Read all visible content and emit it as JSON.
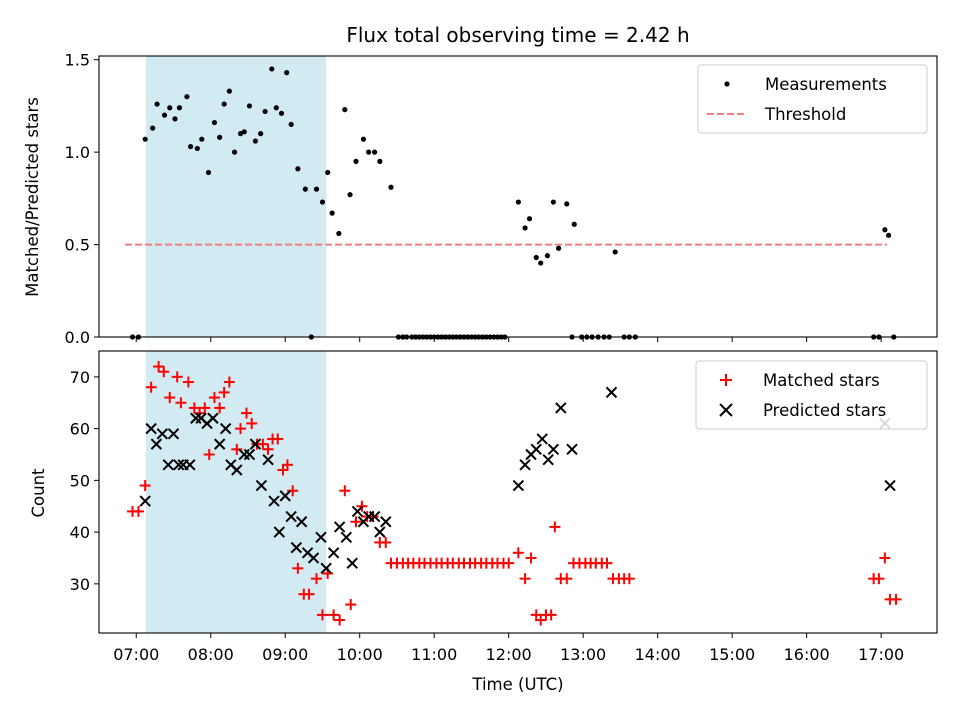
{
  "chart_data": [
    {
      "type": "scatter",
      "title": "Flux total observing time = 2.42 h",
      "ylabel": "Matched/Predicted stars",
      "xlim": [
        6.5,
        17.75
      ],
      "ylim": [
        0,
        1.52
      ],
      "yticks": [
        0.0,
        0.5,
        1.0,
        1.5
      ],
      "yticklabels": [
        "0.0",
        "0.5",
        "1.0",
        "1.5"
      ],
      "shaded_interval": {
        "x": [
          7.13,
          9.55
        ],
        "color": "#add8e6"
      },
      "legend": "top-right",
      "threshold": {
        "name": "Threshold",
        "y": 0.5,
        "x": [
          6.85,
          17.08
        ],
        "color": "#f08080",
        "style": "dashed"
      },
      "series": [
        {
          "name": "Measurements",
          "color": "#000000",
          "marker": "dot",
          "points": [
            [
              6.95,
              0
            ],
            [
              7.03,
              0
            ],
            [
              7.12,
              1.07
            ],
            [
              7.22,
              1.13
            ],
            [
              7.28,
              1.26
            ],
            [
              7.38,
              1.2
            ],
            [
              7.45,
              1.24
            ],
            [
              7.52,
              1.18
            ],
            [
              7.58,
              1.24
            ],
            [
              7.68,
              1.3
            ],
            [
              7.73,
              1.03
            ],
            [
              7.82,
              1.02
            ],
            [
              7.88,
              1.07
            ],
            [
              7.97,
              0.89
            ],
            [
              8.05,
              1.16
            ],
            [
              8.12,
              1.08
            ],
            [
              8.18,
              1.26
            ],
            [
              8.25,
              1.33
            ],
            [
              8.32,
              1.0
            ],
            [
              8.4,
              1.1
            ],
            [
              8.45,
              1.11
            ],
            [
              8.52,
              1.25
            ],
            [
              8.6,
              1.06
            ],
            [
              8.67,
              1.1
            ],
            [
              8.73,
              1.22
            ],
            [
              8.82,
              1.45
            ],
            [
              8.88,
              1.24
            ],
            [
              8.95,
              1.21
            ],
            [
              9.02,
              1.43
            ],
            [
              9.08,
              1.15
            ],
            [
              9.17,
              0.91
            ],
            [
              9.27,
              0.8
            ],
            [
              9.35,
              0
            ],
            [
              9.42,
              0.8
            ],
            [
              9.5,
              0.73
            ],
            [
              9.57,
              0.89
            ],
            [
              9.63,
              0.67
            ],
            [
              9.72,
              0.56
            ],
            [
              9.8,
              1.23
            ],
            [
              9.87,
              0.77
            ],
            [
              9.95,
              0.95
            ],
            [
              10.05,
              1.07
            ],
            [
              10.12,
              1.0
            ],
            [
              10.2,
              1.0
            ],
            [
              10.27,
              0.95
            ],
            [
              10.42,
              0.81
            ],
            [
              10.52,
              0
            ],
            [
              10.58,
              0
            ],
            [
              10.63,
              0
            ],
            [
              10.7,
              0
            ],
            [
              10.75,
              0
            ],
            [
              10.8,
              0
            ],
            [
              10.85,
              0
            ],
            [
              10.9,
              0
            ],
            [
              10.95,
              0
            ],
            [
              11.0,
              0
            ],
            [
              11.05,
              0
            ],
            [
              11.1,
              0
            ],
            [
              11.15,
              0
            ],
            [
              11.2,
              0
            ],
            [
              11.25,
              0
            ],
            [
              11.3,
              0
            ],
            [
              11.35,
              0
            ],
            [
              11.4,
              0
            ],
            [
              11.45,
              0
            ],
            [
              11.5,
              0
            ],
            [
              11.55,
              0
            ],
            [
              11.6,
              0
            ],
            [
              11.65,
              0
            ],
            [
              11.7,
              0
            ],
            [
              11.75,
              0
            ],
            [
              11.8,
              0
            ],
            [
              11.85,
              0
            ],
            [
              11.9,
              0
            ],
            [
              11.95,
              0
            ],
            [
              12.13,
              0.73
            ],
            [
              12.22,
              0.59
            ],
            [
              12.28,
              0.64
            ],
            [
              12.37,
              0.43
            ],
            [
              12.43,
              0.4
            ],
            [
              12.52,
              0.44
            ],
            [
              12.6,
              0.73
            ],
            [
              12.67,
              0.48
            ],
            [
              12.78,
              0.72
            ],
            [
              12.88,
              0.61
            ],
            [
              12.85,
              0
            ],
            [
              12.98,
              0
            ],
            [
              13.05,
              0
            ],
            [
              13.12,
              0
            ],
            [
              13.2,
              0
            ],
            [
              13.28,
              0
            ],
            [
              13.35,
              0
            ],
            [
              13.43,
              0.46
            ],
            [
              13.55,
              0
            ],
            [
              13.62,
              0
            ],
            [
              13.7,
              0
            ],
            [
              16.9,
              0
            ],
            [
              16.97,
              0
            ],
            [
              17.05,
              0.58
            ],
            [
              17.1,
              0.55
            ],
            [
              17.17,
              0
            ]
          ]
        }
      ]
    },
    {
      "type": "scatter",
      "xlabel": "Time (UTC)",
      "ylabel": "Count",
      "xlim": [
        6.5,
        17.75
      ],
      "ylim": [
        20.5,
        75
      ],
      "yticks": [
        30,
        40,
        50,
        60,
        70
      ],
      "yticklabels": [
        "30",
        "40",
        "50",
        "60",
        "70"
      ],
      "xticks": [
        7,
        8,
        9,
        10,
        11,
        12,
        13,
        14,
        15,
        16,
        17
      ],
      "xticklabels": [
        "07:00",
        "08:00",
        "09:00",
        "10:00",
        "11:00",
        "12:00",
        "13:00",
        "14:00",
        "15:00",
        "16:00",
        "17:00"
      ],
      "shaded_interval": {
        "x": [
          7.13,
          9.55
        ],
        "color": "#add8e6"
      },
      "legend": "top-right",
      "series": [
        {
          "name": "Matched stars",
          "color": "#ff0000",
          "marker": "plus",
          "points": [
            [
              6.95,
              44
            ],
            [
              7.03,
              44
            ],
            [
              7.12,
              49
            ],
            [
              7.2,
              68
            ],
            [
              7.3,
              72
            ],
            [
              7.37,
              71
            ],
            [
              7.45,
              66
            ],
            [
              7.55,
              70
            ],
            [
              7.6,
              65
            ],
            [
              7.7,
              69
            ],
            [
              7.78,
              64
            ],
            [
              7.85,
              63
            ],
            [
              7.92,
              64
            ],
            [
              7.98,
              55
            ],
            [
              8.05,
              66
            ],
            [
              8.12,
              64
            ],
            [
              8.18,
              67
            ],
            [
              8.25,
              69
            ],
            [
              8.35,
              56
            ],
            [
              8.4,
              60
            ],
            [
              8.48,
              63
            ],
            [
              8.55,
              61
            ],
            [
              8.62,
              57
            ],
            [
              8.7,
              57
            ],
            [
              8.77,
              56
            ],
            [
              8.83,
              58
            ],
            [
              8.9,
              58
            ],
            [
              8.97,
              52
            ],
            [
              9.03,
              53
            ],
            [
              9.1,
              48
            ],
            [
              9.17,
              33
            ],
            [
              9.25,
              28
            ],
            [
              9.32,
              28
            ],
            [
              9.42,
              31
            ],
            [
              9.5,
              24
            ],
            [
              9.57,
              32
            ],
            [
              9.65,
              24
            ],
            [
              9.73,
              23
            ],
            [
              9.8,
              48
            ],
            [
              9.88,
              26
            ],
            [
              9.95,
              42
            ],
            [
              10.03,
              45
            ],
            [
              10.1,
              43
            ],
            [
              10.18,
              43
            ],
            [
              10.27,
              38
            ],
            [
              10.35,
              38
            ],
            [
              10.42,
              34
            ],
            [
              10.5,
              34
            ],
            [
              10.58,
              34
            ],
            [
              10.65,
              34
            ],
            [
              10.72,
              34
            ],
            [
              10.8,
              34
            ],
            [
              10.87,
              34
            ],
            [
              10.95,
              34
            ],
            [
              11.03,
              34
            ],
            [
              11.1,
              34
            ],
            [
              11.18,
              34
            ],
            [
              11.25,
              34
            ],
            [
              11.33,
              34
            ],
            [
              11.4,
              34
            ],
            [
              11.48,
              34
            ],
            [
              11.55,
              34
            ],
            [
              11.63,
              34
            ],
            [
              11.7,
              34
            ],
            [
              11.78,
              34
            ],
            [
              11.85,
              34
            ],
            [
              11.93,
              34
            ],
            [
              12.0,
              34
            ],
            [
              12.13,
              36
            ],
            [
              12.22,
              31
            ],
            [
              12.3,
              35
            ],
            [
              12.37,
              24
            ],
            [
              12.43,
              23
            ],
            [
              12.5,
              24
            ],
            [
              12.57,
              24
            ],
            [
              12.62,
              41
            ],
            [
              12.7,
              31
            ],
            [
              12.78,
              31
            ],
            [
              12.87,
              34
            ],
            [
              12.95,
              34
            ],
            [
              13.03,
              34
            ],
            [
              13.1,
              34
            ],
            [
              13.17,
              34
            ],
            [
              13.25,
              34
            ],
            [
              13.32,
              34
            ],
            [
              13.4,
              31
            ],
            [
              13.48,
              31
            ],
            [
              13.55,
              31
            ],
            [
              13.62,
              31
            ],
            [
              16.9,
              31
            ],
            [
              16.97,
              31
            ],
            [
              17.05,
              35
            ],
            [
              17.12,
              27
            ],
            [
              17.2,
              27
            ]
          ]
        },
        {
          "name": "Predicted stars",
          "color": "#000000",
          "marker": "x",
          "points": [
            [
              7.12,
              46
            ],
            [
              7.2,
              60
            ],
            [
              7.27,
              57
            ],
            [
              7.35,
              59
            ],
            [
              7.43,
              53
            ],
            [
              7.5,
              59
            ],
            [
              7.57,
              53
            ],
            [
              7.63,
              53
            ],
            [
              7.72,
              53
            ],
            [
              7.8,
              62
            ],
            [
              7.87,
              62
            ],
            [
              7.95,
              61
            ],
            [
              8.03,
              62
            ],
            [
              8.12,
              57
            ],
            [
              8.2,
              60
            ],
            [
              8.27,
              53
            ],
            [
              8.35,
              52
            ],
            [
              8.45,
              55
            ],
            [
              8.52,
              55
            ],
            [
              8.6,
              57
            ],
            [
              8.68,
              49
            ],
            [
              8.77,
              54
            ],
            [
              8.85,
              46
            ],
            [
              8.92,
              40
            ],
            [
              9.0,
              47
            ],
            [
              9.08,
              43
            ],
            [
              9.15,
              37
            ],
            [
              9.22,
              42
            ],
            [
              9.3,
              36
            ],
            [
              9.38,
              35
            ],
            [
              9.48,
              39
            ],
            [
              9.55,
              33
            ],
            [
              9.65,
              36
            ],
            [
              9.73,
              41
            ],
            [
              9.82,
              39
            ],
            [
              9.9,
              34
            ],
            [
              9.97,
              44
            ],
            [
              10.05,
              42
            ],
            [
              10.12,
              43
            ],
            [
              10.2,
              43
            ],
            [
              10.27,
              40
            ],
            [
              10.35,
              42
            ],
            [
              12.13,
              49
            ],
            [
              12.22,
              53
            ],
            [
              12.3,
              55
            ],
            [
              12.37,
              56
            ],
            [
              12.45,
              58
            ],
            [
              12.53,
              54
            ],
            [
              12.6,
              56
            ],
            [
              12.7,
              64
            ],
            [
              12.85,
              56
            ],
            [
              13.38,
              67
            ],
            [
              17.05,
              61
            ],
            [
              17.12,
              49
            ]
          ]
        }
      ]
    }
  ]
}
